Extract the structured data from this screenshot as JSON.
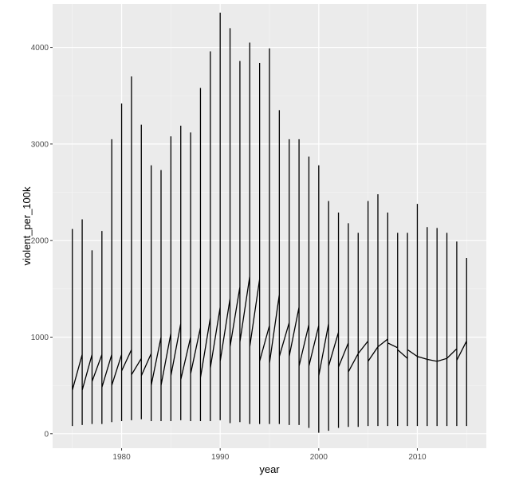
{
  "chart_data": {
    "type": "line",
    "title": "",
    "xlabel": "year",
    "ylabel": "violent_per_100k",
    "xlim": [
      1973,
      2017
    ],
    "ylim": [
      -150,
      4450
    ],
    "x_ticks": [
      1980,
      1990,
      2000,
      2010
    ],
    "y_ticks": [
      0,
      1000,
      2000,
      3000,
      4000
    ],
    "x_tick_labels": [
      "1980",
      "1990",
      "2000",
      "2010"
    ],
    "y_tick_labels": [
      "0",
      "1000",
      "2000",
      "3000",
      "4000"
    ],
    "grid": true,
    "legend": "none",
    "colors": {
      "panel": "#ebebeb",
      "grid_major": "#ffffff",
      "grid_minor": "#f5f5f5",
      "line": "#000000"
    },
    "path": [
      [
        1975,
        450
      ],
      [
        1975,
        2120
      ],
      [
        1975,
        80
      ],
      [
        1975,
        450
      ],
      [
        1976,
        820
      ],
      [
        1976,
        2220
      ],
      [
        1976,
        90
      ],
      [
        1976,
        450
      ],
      [
        1977,
        820
      ],
      [
        1977,
        1900
      ],
      [
        1977,
        100
      ],
      [
        1977,
        540
      ],
      [
        1978,
        820
      ],
      [
        1978,
        2100
      ],
      [
        1978,
        100
      ],
      [
        1978,
        480
      ],
      [
        1979,
        820
      ],
      [
        1979,
        3050
      ],
      [
        1979,
        120
      ],
      [
        1979,
        500
      ],
      [
        1980,
        820
      ],
      [
        1980,
        3420
      ],
      [
        1980,
        130
      ],
      [
        1980,
        650
      ],
      [
        1981,
        870
      ],
      [
        1981,
        3700
      ],
      [
        1981,
        140
      ],
      [
        1981,
        610
      ],
      [
        1982,
        780
      ],
      [
        1982,
        3200
      ],
      [
        1982,
        150
      ],
      [
        1982,
        600
      ],
      [
        1983,
        830
      ],
      [
        1983,
        2780
      ],
      [
        1983,
        130
      ],
      [
        1983,
        500
      ],
      [
        1984,
        1000
      ],
      [
        1984,
        2730
      ],
      [
        1984,
        130
      ],
      [
        1984,
        500
      ],
      [
        1985,
        1040
      ],
      [
        1985,
        3080
      ],
      [
        1985,
        130
      ],
      [
        1985,
        600
      ],
      [
        1986,
        1140
      ],
      [
        1986,
        3190
      ],
      [
        1986,
        140
      ],
      [
        1986,
        560
      ],
      [
        1987,
        1000
      ],
      [
        1987,
        3120
      ],
      [
        1987,
        130
      ],
      [
        1987,
        620
      ],
      [
        1988,
        1100
      ],
      [
        1988,
        3580
      ],
      [
        1988,
        130
      ],
      [
        1988,
        580
      ],
      [
        1989,
        1200
      ],
      [
        1989,
        3960
      ],
      [
        1989,
        130
      ],
      [
        1989,
        680
      ],
      [
        1990,
        1310
      ],
      [
        1990,
        4360
      ],
      [
        1990,
        140
      ],
      [
        1990,
        750
      ],
      [
        1991,
        1400
      ],
      [
        1991,
        4200
      ],
      [
        1991,
        110
      ],
      [
        1991,
        900
      ],
      [
        1992,
        1520
      ],
      [
        1992,
        3860
      ],
      [
        1992,
        120
      ],
      [
        1992,
        950
      ],
      [
        1993,
        1630
      ],
      [
        1993,
        4050
      ],
      [
        1993,
        100
      ],
      [
        1993,
        900
      ],
      [
        1994,
        1600
      ],
      [
        1994,
        3840
      ],
      [
        1994,
        100
      ],
      [
        1994,
        750
      ],
      [
        1995,
        1120
      ],
      [
        1995,
        3990
      ],
      [
        1995,
        100
      ],
      [
        1995,
        730
      ],
      [
        1996,
        1440
      ],
      [
        1996,
        3350
      ],
      [
        1996,
        100
      ],
      [
        1996,
        800
      ],
      [
        1997,
        1150
      ],
      [
        1997,
        3050
      ],
      [
        1997,
        90
      ],
      [
        1997,
        800
      ],
      [
        1998,
        1310
      ],
      [
        1998,
        3050
      ],
      [
        1998,
        90
      ],
      [
        1998,
        700
      ],
      [
        1999,
        1130
      ],
      [
        1999,
        2870
      ],
      [
        1999,
        60
      ],
      [
        1999,
        700
      ],
      [
        2000,
        1120
      ],
      [
        2000,
        2780
      ],
      [
        2000,
        10
      ],
      [
        2000,
        600
      ],
      [
        2001,
        1140
      ],
      [
        2001,
        2410
      ],
      [
        2001,
        30
      ],
      [
        2001,
        700
      ],
      [
        2002,
        1050
      ],
      [
        2002,
        2290
      ],
      [
        2002,
        60
      ],
      [
        2002,
        690
      ],
      [
        2003,
        940
      ],
      [
        2003,
        2180
      ],
      [
        2003,
        70
      ],
      [
        2003,
        640
      ],
      [
        2004,
        830
      ],
      [
        2004,
        2080
      ],
      [
        2004,
        70
      ],
      [
        2004,
        830
      ],
      [
        2005,
        960
      ],
      [
        2005,
        2410
      ],
      [
        2005,
        80
      ],
      [
        2005,
        750
      ],
      [
        2006,
        900
      ],
      [
        2006,
        2480
      ],
      [
        2006,
        80
      ],
      [
        2006,
        900
      ],
      [
        2007,
        980
      ],
      [
        2007,
        2290
      ],
      [
        2007,
        80
      ],
      [
        2007,
        940
      ],
      [
        2008,
        890
      ],
      [
        2008,
        2080
      ],
      [
        2008,
        80
      ],
      [
        2008,
        870
      ],
      [
        2009,
        780
      ],
      [
        2009,
        2080
      ],
      [
        2009,
        80
      ],
      [
        2009,
        870
      ],
      [
        2010,
        800
      ],
      [
        2010,
        2380
      ],
      [
        2010,
        80
      ],
      [
        2010,
        800
      ],
      [
        2011,
        770
      ],
      [
        2011,
        2140
      ],
      [
        2011,
        80
      ],
      [
        2011,
        770
      ],
      [
        2012,
        750
      ],
      [
        2012,
        2130
      ],
      [
        2012,
        80
      ],
      [
        2012,
        750
      ],
      [
        2013,
        780
      ],
      [
        2013,
        2080
      ],
      [
        2013,
        80
      ],
      [
        2013,
        780
      ],
      [
        2014,
        880
      ],
      [
        2014,
        1990
      ],
      [
        2014,
        80
      ],
      [
        2014,
        760
      ],
      [
        2015,
        960
      ],
      [
        2015,
        1820
      ],
      [
        2015,
        80
      ],
      [
        2015,
        960
      ]
    ]
  }
}
